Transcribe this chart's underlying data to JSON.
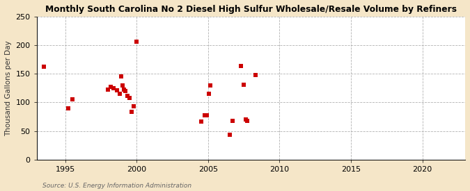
{
  "title": "Monthly South Carolina No 2 Diesel High Sulfur Wholesale/Resale Volume by Refiners",
  "ylabel": "Thousand Gallons per Day",
  "source": "Source: U.S. Energy Information Administration",
  "fig_background_color": "#f5e6c8",
  "axes_background_color": "#ffffff",
  "marker_color": "#cc0000",
  "xlim": [
    1993,
    2023
  ],
  "ylim": [
    0,
    250
  ],
  "xticks": [
    1995,
    2000,
    2005,
    2010,
    2015,
    2020
  ],
  "yticks": [
    0,
    50,
    100,
    150,
    200,
    250
  ],
  "scatter_x": [
    1993.5,
    1995.2,
    1995.5,
    1998.0,
    1998.2,
    1998.4,
    1998.6,
    1998.8,
    1998.9,
    1999.0,
    1999.1,
    1999.2,
    1999.35,
    1999.5,
    1999.65,
    1999.8,
    2000.0,
    2004.5,
    2004.75,
    2004.9,
    2005.05,
    2005.15,
    2006.5,
    2006.7,
    2007.3,
    2007.5,
    2007.65,
    2007.75,
    2008.3
  ],
  "scatter_y": [
    163,
    90,
    105,
    122,
    127,
    125,
    121,
    115,
    145,
    130,
    122,
    120,
    112,
    108,
    83,
    93,
    206,
    66,
    77,
    78,
    115,
    130,
    44,
    68,
    164,
    131,
    70,
    68,
    148
  ]
}
